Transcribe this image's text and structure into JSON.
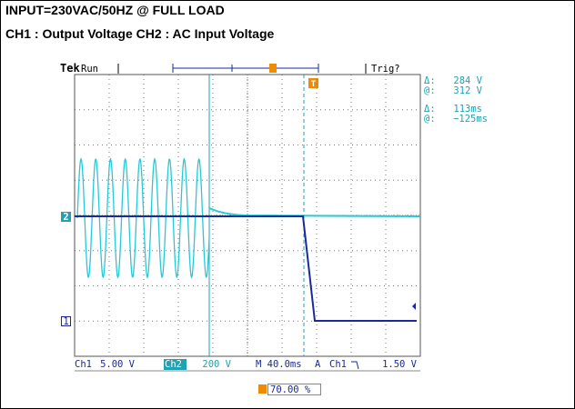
{
  "header": {
    "line1": "INPUT=230VAC/50HZ @ FULL LOAD",
    "line2": "CH1 : Output Voltage CH2 : AC Input Voltage"
  },
  "scope": {
    "brand": "Tek",
    "status": "Run",
    "trigger_status": "Trig?",
    "trigger_marker": "T",
    "readouts": [
      {
        "symbol": "Δ:",
        "value": "284 V"
      },
      {
        "symbol": "@:",
        "value": "312 V"
      },
      {
        "symbol": "Δ:",
        "value": "113ms"
      },
      {
        "symbol": "@:",
        "value": "−125ms"
      }
    ],
    "channel_markers": [
      "2",
      "1"
    ],
    "bottom_bar": {
      "ch1_label": "Ch1",
      "ch1_scale": "5.00 V",
      "ch2_label": "Ch2",
      "ch2_scale": "200 V",
      "timebase": "M 40.0ms",
      "trigger_mode": "A",
      "trigger_source": "Ch1",
      "trigger_level": "1.50 V"
    },
    "trigger_position": "70.00 %"
  }
}
